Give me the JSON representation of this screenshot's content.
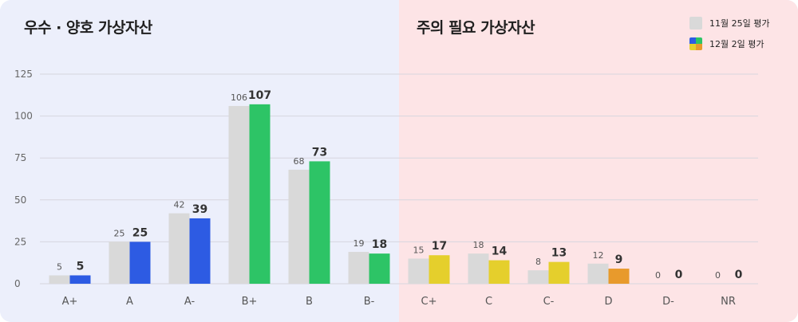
{
  "titles": {
    "good": "우수 · 양호 가상자산",
    "caution": "주의 필요 가상자산"
  },
  "legend": {
    "prev": "11월 25일 평가",
    "cur": "12월 2일 평가"
  },
  "colors": {
    "prev": "#d9d9d9",
    "blue": "#2d5be3",
    "green": "#2dc466",
    "yellow": "#e5cf2c",
    "orange": "#e89a2c",
    "bg_good": "#eceffb",
    "bg_caution": "#fde4e6"
  },
  "chart_data": {
    "type": "bar",
    "categories": [
      "A+",
      "A",
      "A-",
      "B+",
      "B",
      "B-",
      "C+",
      "C",
      "C-",
      "D",
      "D-",
      "NR"
    ],
    "series": [
      {
        "name": "11월 25일 평가",
        "values": [
          5,
          25,
          42,
          106,
          68,
          19,
          15,
          18,
          8,
          12,
          0,
          0
        ]
      },
      {
        "name": "12월 2일 평가",
        "values": [
          5,
          25,
          39,
          107,
          73,
          18,
          17,
          14,
          13,
          9,
          0,
          0
        ]
      }
    ],
    "current_bar_colors": [
      "blue",
      "blue",
      "blue",
      "green",
      "green",
      "green",
      "yellow",
      "yellow",
      "yellow",
      "orange",
      "orange",
      "orange"
    ],
    "ylim": [
      0,
      125
    ],
    "yticks": [
      0,
      25,
      50,
      75,
      100,
      125
    ],
    "grid": true,
    "legend_position": "top-right"
  }
}
